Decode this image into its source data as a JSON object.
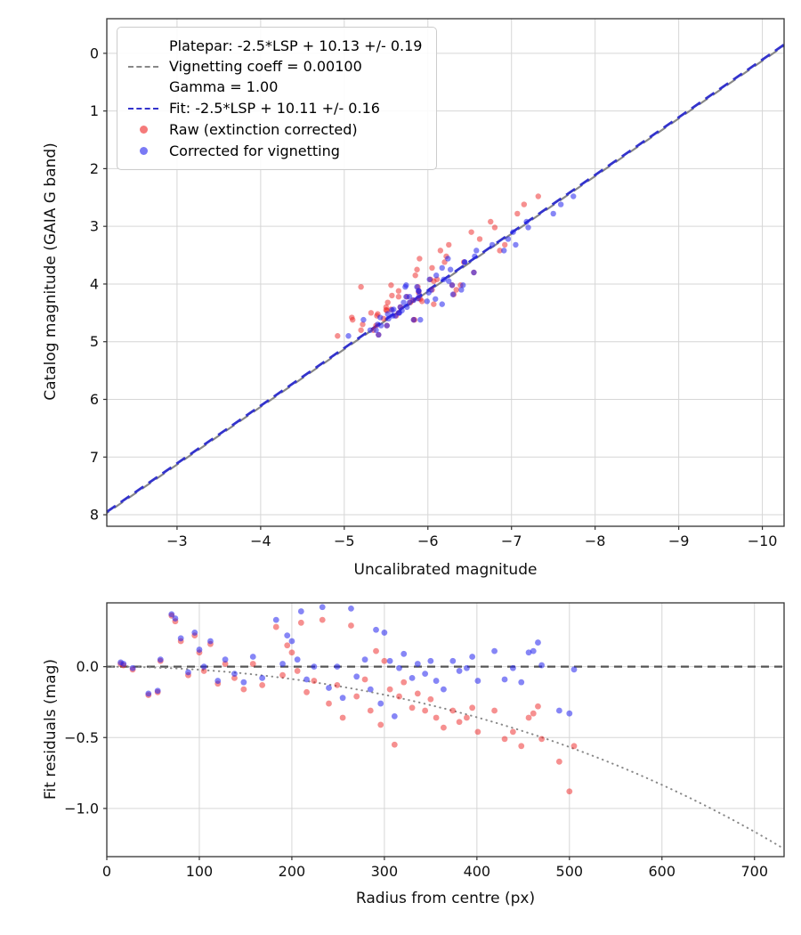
{
  "chart_data": [
    {
      "type": "scatter",
      "title": "",
      "xlabel": "Uncalibrated magnitude",
      "ylabel": "Catalog magnitude (GAIA G band)",
      "xlim": [
        -2.16,
        -10.26
      ],
      "ylim": [
        8.2,
        -0.6
      ],
      "x_ticks": [
        -3,
        -4,
        -5,
        -6,
        -7,
        -8,
        -9,
        -10
      ],
      "x_tick_labels": [
        "−3",
        "−4",
        "−5",
        "−6",
        "−7",
        "−8",
        "−9",
        "−10"
      ],
      "y_ticks": [
        0,
        1,
        2,
        3,
        4,
        5,
        6,
        7,
        8
      ],
      "y_tick_labels": [
        "0",
        "1",
        "2",
        "3",
        "4",
        "5",
        "6",
        "7",
        "8"
      ],
      "grid": true,
      "lines": [
        {
          "name": "platepar",
          "label": "Platepar: -2.5*LSP + 10.13 +/- 0.19",
          "slope": 1,
          "intercept": 10.13,
          "color": "#888888",
          "dash": "12 7",
          "width": 2.2
        },
        {
          "name": "fit",
          "label": "Fit: -2.5*LSP + 10.11 +/- 0.16",
          "slope": 1,
          "intercept": 10.11,
          "color": "#3333cc",
          "dash": "12 7",
          "width": 2.8
        }
      ],
      "series": [
        {
          "name": "Raw (extinction corrected)",
          "color": "#ee2222",
          "opacity": 0.5
        },
        {
          "name": "Corrected for vignetting",
          "color": "#2222ee",
          "opacity": 0.55
        }
      ],
      "legend": {
        "position": "upper-left",
        "entries": [
          {
            "handle": "dashed-line",
            "color": "#888888",
            "lines": [
              "Platepar: -2.5*LSP + 10.13 +/- 0.19",
              "Vignetting coeff = 0.00100",
              "Gamma = 1.00"
            ]
          },
          {
            "handle": "dashed-line",
            "color": "#3333cc",
            "lines": [
              "Fit: -2.5*LSP + 10.11 +/- 0.16"
            ]
          },
          {
            "handle": "dot",
            "color": "#ee2222",
            "lines": [
              "Raw (extinction corrected)"
            ]
          },
          {
            "handle": "dot",
            "color": "#2222ee",
            "lines": [
              "Corrected for vignetting"
            ]
          }
        ]
      }
    },
    {
      "type": "scatter",
      "title": "",
      "xlabel": "Radius from centre (px)",
      "ylabel": "Fit residuals (mag)",
      "xlim": [
        0,
        732
      ],
      "ylim": [
        -1.34,
        0.45
      ],
      "x_ticks": [
        0,
        100,
        200,
        300,
        400,
        500,
        600,
        700
      ],
      "x_tick_labels": [
        "0",
        "100",
        "200",
        "300",
        "400",
        "500",
        "600",
        "700"
      ],
      "y_ticks": [
        0,
        -0.5,
        -1.0
      ],
      "y_tick_labels": [
        "0.0",
        "−0.5",
        "−1.0"
      ],
      "grid": true,
      "zero_line": {
        "color": "#555555",
        "dash": "9 6",
        "width": 2.2
      },
      "vignetting_curve": {
        "coeff": 0.001,
        "formula": "10*log10(cos(coeff*r))",
        "color": "#888888",
        "width": 2
      },
      "series": [
        {
          "name": "Raw (extinction corrected)",
          "color": "#ee2222",
          "opacity": 0.5
        },
        {
          "name": "Corrected for vignetting",
          "color": "#2222ee",
          "opacity": 0.55
        }
      ]
    }
  ],
  "stars": {
    "format": [
      "radius_px",
      "catalog_mag",
      "residual_raw",
      "residual_corrected"
    ],
    "rows": [
      [
        15,
        4.1,
        0.02,
        0.03
      ],
      [
        18,
        4.25,
        0.01,
        0.02
      ],
      [
        28,
        4.32,
        -0.02,
        -0.01
      ],
      [
        45,
        4.05,
        -0.2,
        -0.19
      ],
      [
        55,
        3.92,
        -0.18,
        -0.17
      ],
      [
        58,
        4.55,
        0.04,
        0.05
      ],
      [
        70,
        4.18,
        0.36,
        0.37
      ],
      [
        74,
        4.62,
        0.32,
        0.34
      ],
      [
        80,
        4.02,
        0.18,
        0.2
      ],
      [
        88,
        4.4,
        -0.06,
        -0.04
      ],
      [
        95,
        3.8,
        0.22,
        0.24
      ],
      [
        100,
        4.72,
        0.1,
        0.12
      ],
      [
        105,
        4.28,
        -0.03,
        0
      ],
      [
        112,
        4.88,
        0.16,
        0.18
      ],
      [
        120,
        4.12,
        -0.12,
        -0.1
      ],
      [
        128,
        4.5,
        0.02,
        0.05
      ],
      [
        138,
        3.62,
        -0.08,
        -0.05
      ],
      [
        148,
        4.22,
        -0.16,
        -0.11
      ],
      [
        158,
        4.8,
        0.02,
        0.07
      ],
      [
        168,
        4.44,
        -0.13,
        -0.08
      ],
      [
        183,
        4.02,
        0.28,
        0.33
      ],
      [
        190,
        4.6,
        -0.06,
        0.02
      ],
      [
        195,
        3.42,
        0.15,
        0.22
      ],
      [
        200,
        4.3,
        0.1,
        0.18
      ],
      [
        206,
        4.72,
        -0.03,
        0.05
      ],
      [
        210,
        4.1,
        0.31,
        0.39
      ],
      [
        216,
        4.45,
        -0.18,
        -0.09
      ],
      [
        224,
        3.92,
        -0.1,
        0
      ],
      [
        233,
        4.62,
        0.33,
        0.42
      ],
      [
        240,
        4.22,
        -0.26,
        -0.15
      ],
      [
        249,
        4.8,
        -0.13,
        0
      ],
      [
        255,
        3.72,
        -0.36,
        -0.22
      ],
      [
        264,
        4.35,
        0.29,
        0.41
      ],
      [
        270,
        4.52,
        -0.21,
        -0.07
      ],
      [
        279,
        4.15,
        -0.09,
        0.05
      ],
      [
        285,
        4.9,
        -0.31,
        -0.16
      ],
      [
        291,
        3.32,
        0.11,
        0.26
      ],
      [
        296,
        4.62,
        -0.41,
        -0.26
      ],
      [
        300,
        4.26,
        0.04,
        0.24
      ],
      [
        306,
        4.46,
        -0.16,
        0.04
      ],
      [
        311,
        4.02,
        -0.55,
        -0.35
      ],
      [
        316,
        4.7,
        -0.21,
        -0.01
      ],
      [
        321,
        3.95,
        -0.11,
        0.09
      ],
      [
        330,
        4.32,
        -0.29,
        -0.08
      ],
      [
        336,
        4.55,
        -0.19,
        0.02
      ],
      [
        344,
        3.62,
        -0.31,
        -0.05
      ],
      [
        350,
        4.4,
        -0.23,
        0.04
      ],
      [
        356,
        4.12,
        -0.36,
        -0.1
      ],
      [
        364,
        3.85,
        -0.43,
        -0.16
      ],
      [
        374,
        4.5,
        -0.31,
        0.04
      ],
      [
        381,
        3.52,
        -0.39,
        -0.03
      ],
      [
        389,
        4.2,
        -0.36,
        -0.01
      ],
      [
        395,
        3.22,
        -0.29,
        0.07
      ],
      [
        401,
        4.58,
        -0.46,
        -0.1
      ],
      [
        419,
        3.02,
        -0.31,
        0.11
      ],
      [
        430,
        3.75,
        -0.51,
        -0.09
      ],
      [
        439,
        2.92,
        -0.46,
        -0.01
      ],
      [
        448,
        3.42,
        -0.56,
        -0.11
      ],
      [
        456,
        2.62,
        -0.36,
        0.1
      ],
      [
        461,
        2.48,
        -0.33,
        0.11
      ],
      [
        466,
        2.78,
        -0.28,
        0.17
      ],
      [
        470,
        3.1,
        -0.51,
        0.01
      ],
      [
        489,
        3.56,
        -0.67,
        -0.31
      ],
      [
        500,
        4.05,
        -0.88,
        -0.33
      ],
      [
        505,
        3.32,
        -0.56,
        -0.02
      ]
    ]
  }
}
